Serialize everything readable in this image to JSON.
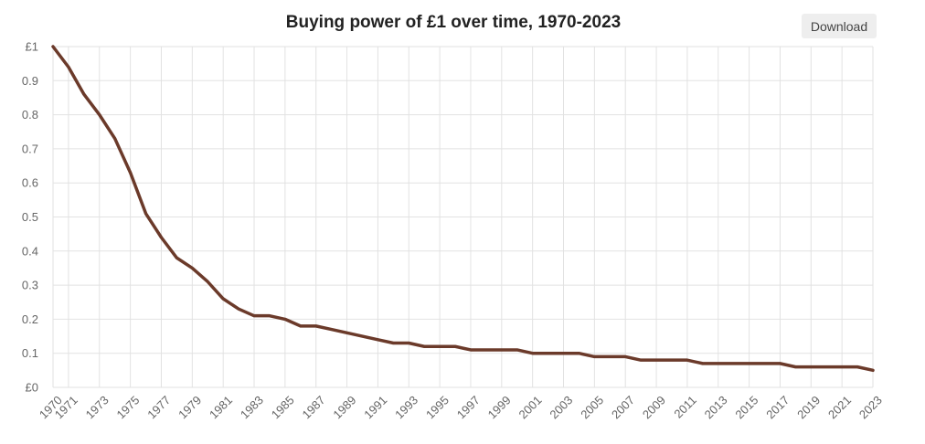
{
  "download_label": "Download",
  "colors": {
    "line": "#6b3a2a",
    "grid": "#e2e2e2",
    "text": "#666666"
  },
  "chart_data": {
    "type": "line",
    "title": "Buying power of £1 over time, 1970-2023",
    "xlabel": "",
    "ylabel": "",
    "ylim": [
      0,
      1
    ],
    "xlim": [
      1970,
      2023
    ],
    "y_ticks": [
      {
        "value": 0,
        "label": "£0"
      },
      {
        "value": 0.1,
        "label": "0.1"
      },
      {
        "value": 0.2,
        "label": "0.2"
      },
      {
        "value": 0.3,
        "label": "0.3"
      },
      {
        "value": 0.4,
        "label": "0.4"
      },
      {
        "value": 0.5,
        "label": "0.5"
      },
      {
        "value": 0.6,
        "label": "0.6"
      },
      {
        "value": 0.7,
        "label": "0.7"
      },
      {
        "value": 0.8,
        "label": "0.8"
      },
      {
        "value": 0.9,
        "label": "0.9"
      },
      {
        "value": 1,
        "label": "£1"
      }
    ],
    "x_tick_labels": [
      "1970",
      "1971",
      "1973",
      "1975",
      "1977",
      "1979",
      "1981",
      "1983",
      "1985",
      "1987",
      "1989",
      "1991",
      "1993",
      "1995",
      "1997",
      "1999",
      "2001",
      "2003",
      "2005",
      "2007",
      "2009",
      "2011",
      "2013",
      "2015",
      "2017",
      "2019",
      "2021",
      "2023"
    ],
    "grid": true,
    "x": [
      1970,
      1971,
      1972,
      1973,
      1974,
      1975,
      1976,
      1977,
      1978,
      1979,
      1980,
      1981,
      1982,
      1983,
      1984,
      1985,
      1986,
      1987,
      1988,
      1989,
      1990,
      1991,
      1992,
      1993,
      1994,
      1995,
      1996,
      1997,
      1998,
      1999,
      2000,
      2001,
      2002,
      2003,
      2004,
      2005,
      2006,
      2007,
      2008,
      2009,
      2010,
      2011,
      2012,
      2013,
      2014,
      2015,
      2016,
      2017,
      2018,
      2019,
      2020,
      2021,
      2022,
      2023
    ],
    "values": [
      1.0,
      0.94,
      0.86,
      0.8,
      0.73,
      0.63,
      0.51,
      0.44,
      0.38,
      0.35,
      0.31,
      0.26,
      0.23,
      0.21,
      0.21,
      0.2,
      0.18,
      0.18,
      0.17,
      0.16,
      0.15,
      0.14,
      0.13,
      0.13,
      0.12,
      0.12,
      0.12,
      0.11,
      0.11,
      0.11,
      0.11,
      0.1,
      0.1,
      0.1,
      0.1,
      0.09,
      0.09,
      0.09,
      0.08,
      0.08,
      0.08,
      0.08,
      0.07,
      0.07,
      0.07,
      0.07,
      0.07,
      0.07,
      0.06,
      0.06,
      0.06,
      0.06,
      0.06,
      0.05
    ]
  }
}
